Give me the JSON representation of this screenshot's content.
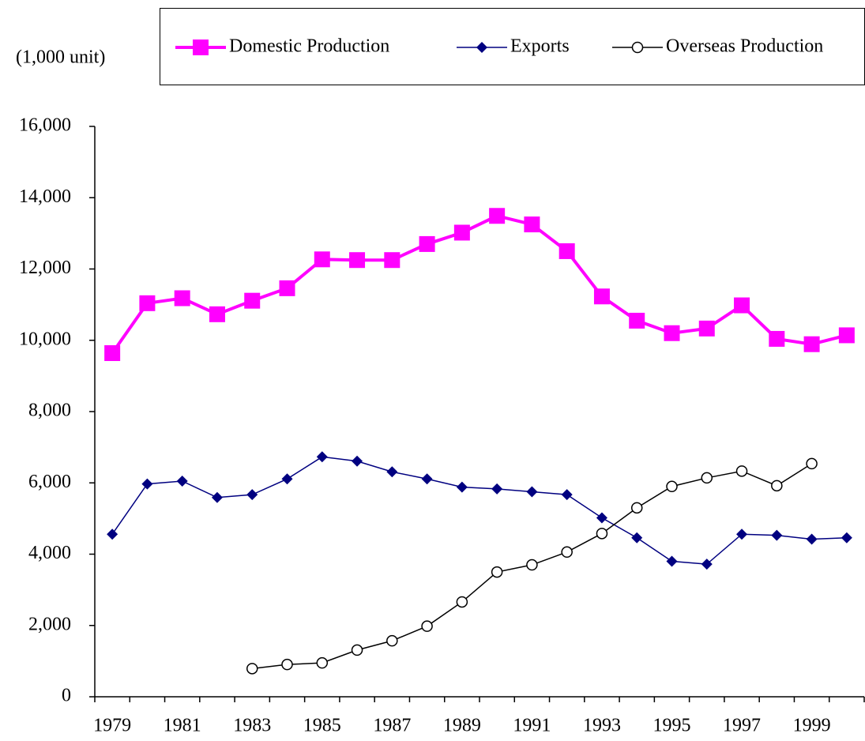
{
  "chart_data": {
    "type": "line",
    "y_axis_label": "(1,000 unit)",
    "categories": [
      "1979",
      null,
      "1981",
      null,
      "1983",
      null,
      "1985",
      null,
      "1987",
      null,
      "1989",
      null,
      "1991",
      null,
      "1993",
      null,
      "1995",
      null,
      "1997",
      null,
      "1999",
      null
    ],
    "series": [
      {
        "name": "Domestic Production",
        "color": "#ff00ff",
        "marker": "square",
        "values": [
          9640,
          11040,
          11180,
          10730,
          11110,
          11460,
          12270,
          12250,
          12250,
          12700,
          13020,
          13490,
          13250,
          12500,
          11230,
          10550,
          10200,
          10330,
          10980,
          10040,
          9890,
          10140
        ]
      },
      {
        "name": "Exports",
        "color": "#000080",
        "marker": "diamond",
        "values": [
          4560,
          5970,
          6050,
          5590,
          5670,
          6110,
          6730,
          6610,
          6310,
          6110,
          5880,
          5830,
          5750,
          5670,
          5020,
          4460,
          3800,
          3720,
          4560,
          4530,
          4420,
          4460
        ]
      },
      {
        "name": "Overseas Production",
        "color": "#000000",
        "marker": "circle",
        "values": [
          null,
          null,
          null,
          null,
          790,
          905,
          950,
          1310,
          1570,
          1980,
          2660,
          3500,
          3700,
          4060,
          4580,
          5300,
          5900,
          6140,
          6330,
          5920,
          6540,
          null
        ]
      }
    ],
    "ylim": [
      0,
      16000
    ],
    "yticks": [
      0,
      {
        "value": 2000,
        "label": "2,000"
      },
      {
        "value": 4000,
        "label": "4,000"
      },
      {
        "value": 6000,
        "label": "6,000"
      },
      {
        "value": 8000,
        "label": "8,000"
      },
      {
        "value": 10000,
        "label": "10,000"
      },
      {
        "value": 12000,
        "label": "12,000"
      },
      {
        "value": 14000,
        "label": "14,000"
      },
      {
        "value": 16000,
        "label": "16,000"
      }
    ],
    "grid": false,
    "legend": "top"
  }
}
